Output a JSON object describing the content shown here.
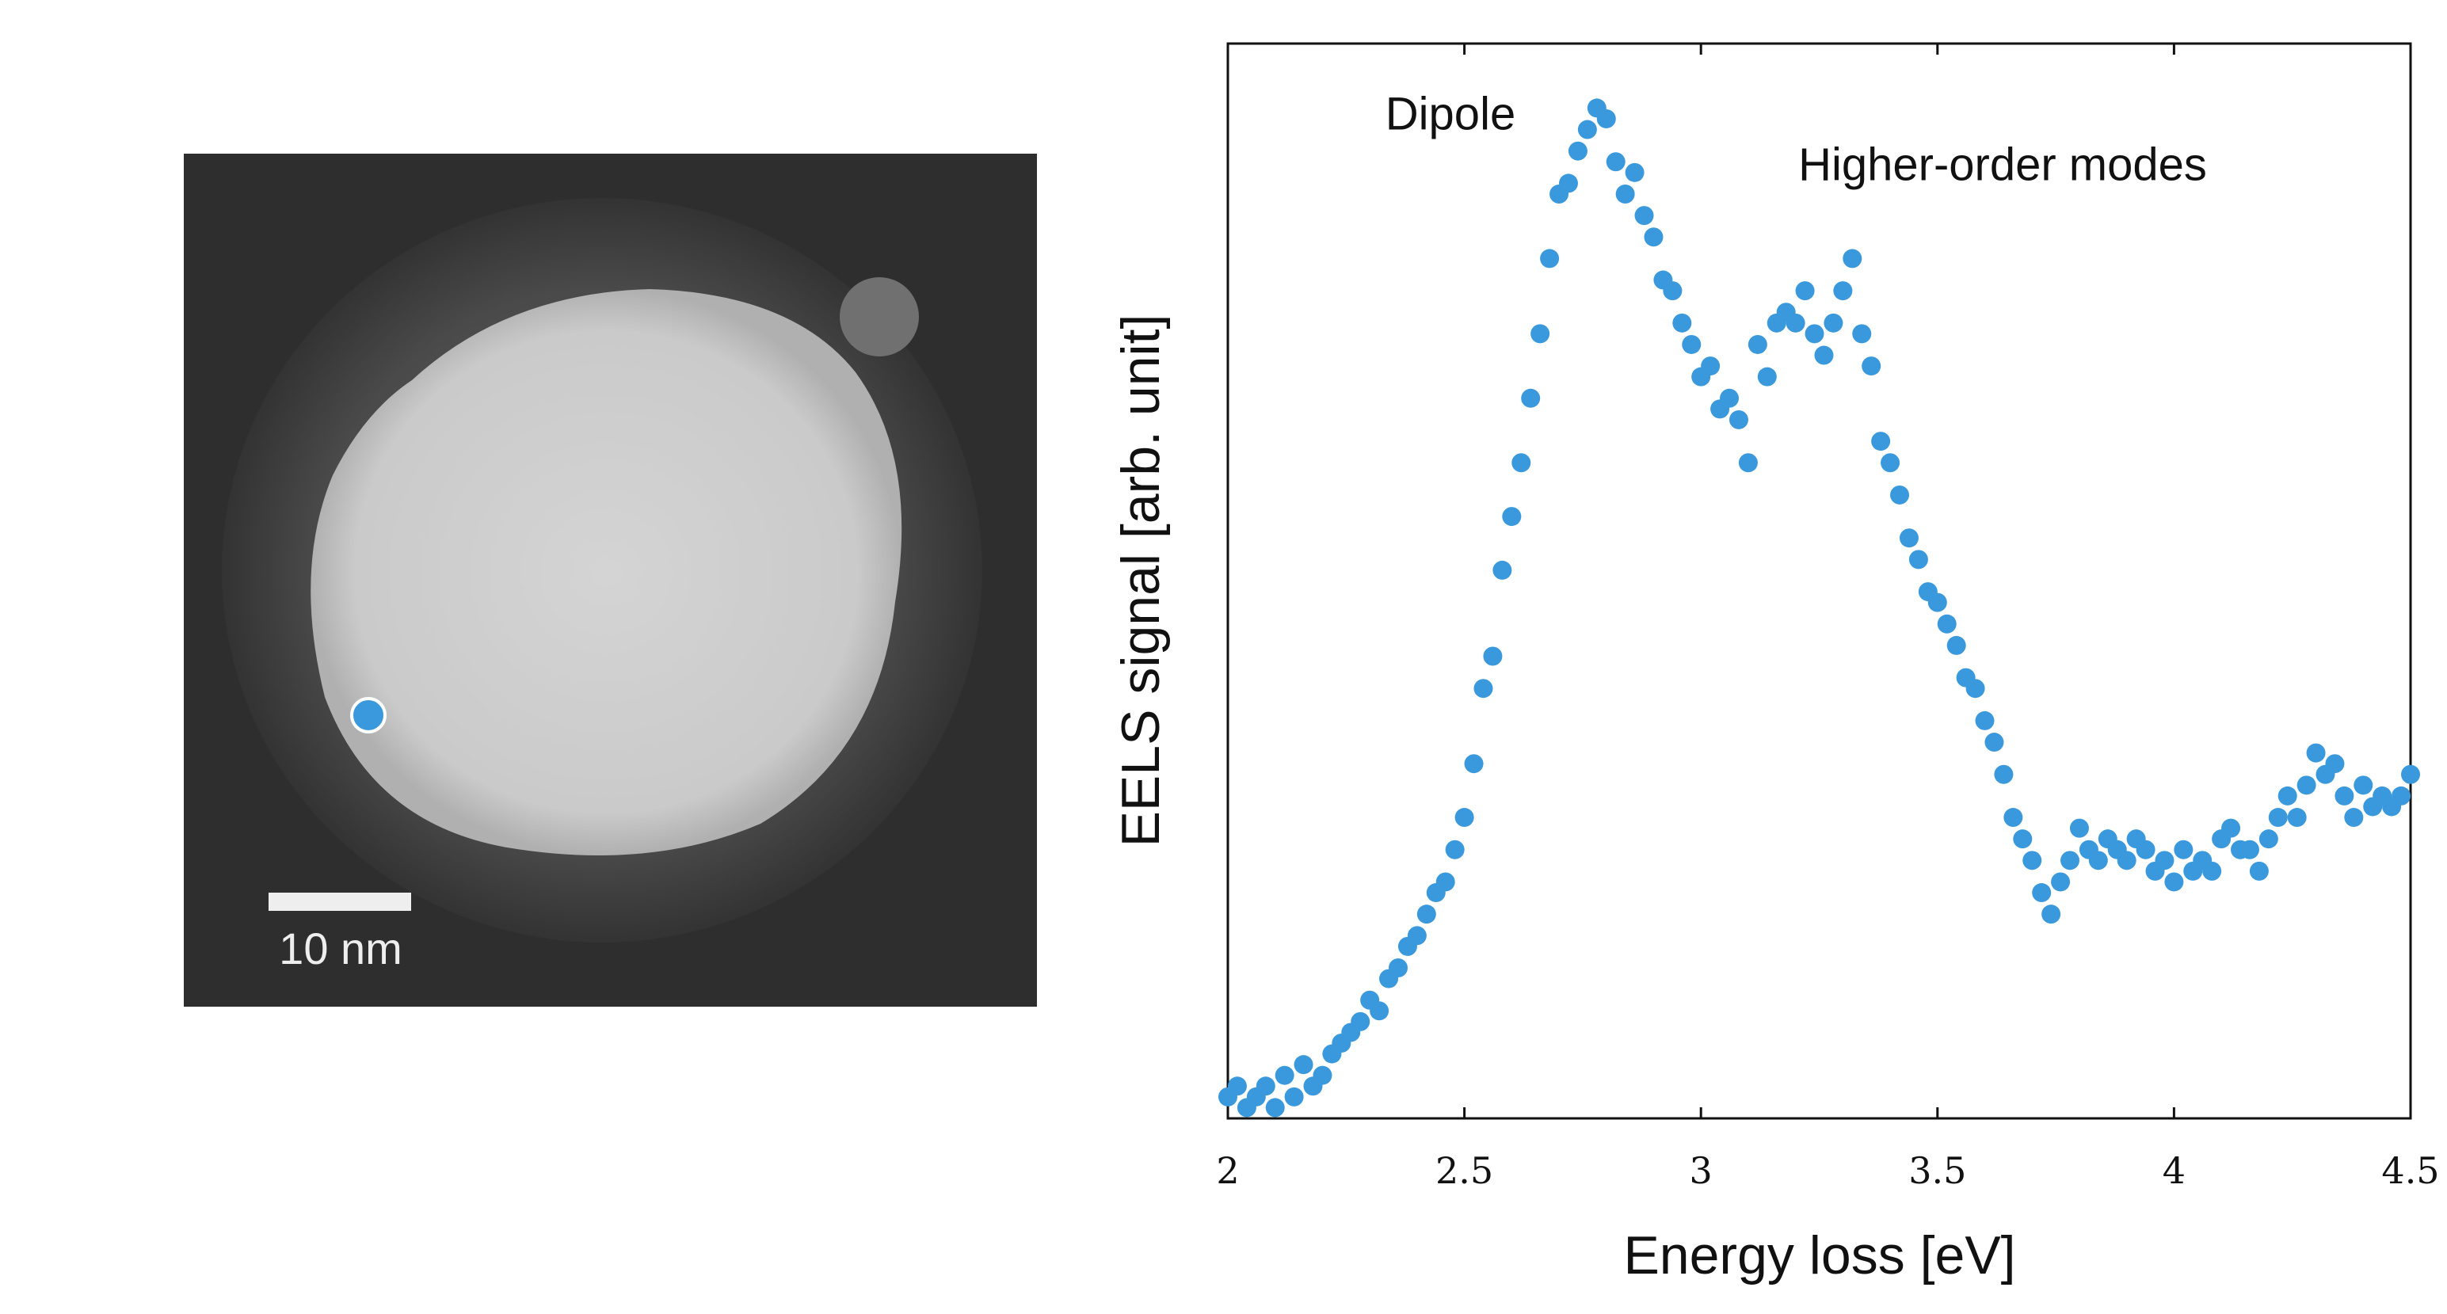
{
  "image": {
    "scale_bar_label": "10 nm"
  },
  "chart_data": {
    "type": "scatter",
    "xlabel": "Energy loss [eV]",
    "ylabel": "EELS signal [arb. unit]",
    "annotations": [
      "Dipole",
      "Higher-order modes"
    ],
    "xlim": [
      2,
      4.5
    ],
    "xticks": [
      2,
      2.5,
      3,
      3.5,
      4,
      4.5
    ],
    "ylim": [
      0,
      100
    ],
    "color": "#3a99dc",
    "x": [
      2,
      2.02,
      2.04,
      2.06,
      2.08,
      2.1,
      2.12,
      2.14,
      2.16,
      2.18,
      2.2,
      2.22,
      2.24,
      2.26,
      2.28,
      2.3,
      2.32,
      2.34,
      2.36,
      2.38,
      2.4,
      2.42,
      2.44,
      2.46,
      2.48,
      2.5,
      2.52,
      2.54,
      2.56,
      2.58,
      2.6,
      2.62,
      2.64,
      2.66,
      2.68,
      2.7,
      2.72,
      2.74,
      2.76,
      2.78,
      2.8,
      2.82,
      2.84,
      2.86,
      2.88,
      2.9,
      2.92,
      2.94,
      2.96,
      2.98,
      3,
      3.02,
      3.04,
      3.06,
      3.08,
      3.1,
      3.12,
      3.14,
      3.16,
      3.18,
      3.2,
      3.22,
      3.24,
      3.26,
      3.28,
      3.3,
      3.32,
      3.34,
      3.36,
      3.38,
      3.4,
      3.42,
      3.44,
      3.46,
      3.48,
      3.5,
      3.52,
      3.54,
      3.56,
      3.58,
      3.6,
      3.62,
      3.64,
      3.66,
      3.68,
      3.7,
      3.72,
      3.74,
      3.76,
      3.78,
      3.8,
      3.82,
      3.84,
      3.86,
      3.88,
      3.9,
      3.92,
      3.94,
      3.96,
      3.98,
      4,
      4.02,
      4.04,
      4.06,
      4.08,
      4.1,
      4.12,
      4.14,
      4.16,
      4.18,
      4.2,
      4.22,
      4.24,
      4.26,
      4.28,
      4.3,
      4.32,
      4.34,
      4.36,
      4.38,
      4.4,
      4.42,
      4.44,
      4.46,
      4.48,
      4.5
    ],
    "values": [
      2,
      3,
      1,
      2,
      3,
      1,
      4,
      2,
      5,
      3,
      4,
      6,
      7,
      8,
      9,
      11,
      10,
      13,
      14,
      16,
      17,
      19,
      21,
      22,
      25,
      28,
      33,
      40,
      43,
      51,
      56,
      61,
      67,
      73,
      80,
      86,
      87,
      90,
      92,
      94,
      93,
      89,
      86,
      88,
      84,
      82,
      78,
      77,
      74,
      72,
      69,
      70,
      66,
      67,
      65,
      61,
      72,
      69,
      74,
      75,
      74,
      77,
      73,
      71,
      74,
      77,
      80,
      73,
      70,
      63,
      61,
      58,
      54,
      52,
      49,
      48,
      46,
      44,
      41,
      40,
      37,
      35,
      32,
      28,
      26,
      24,
      21,
      19,
      22,
      24,
      27,
      25,
      24,
      26,
      25,
      24,
      26,
      25,
      23,
      24,
      22,
      25,
      23,
      24,
      23,
      26,
      27,
      25,
      25,
      23,
      26,
      28,
      30,
      28,
      31,
      34,
      32,
      33,
      30,
      28,
      31,
      29,
      30,
      29,
      30,
      32
    ]
  }
}
